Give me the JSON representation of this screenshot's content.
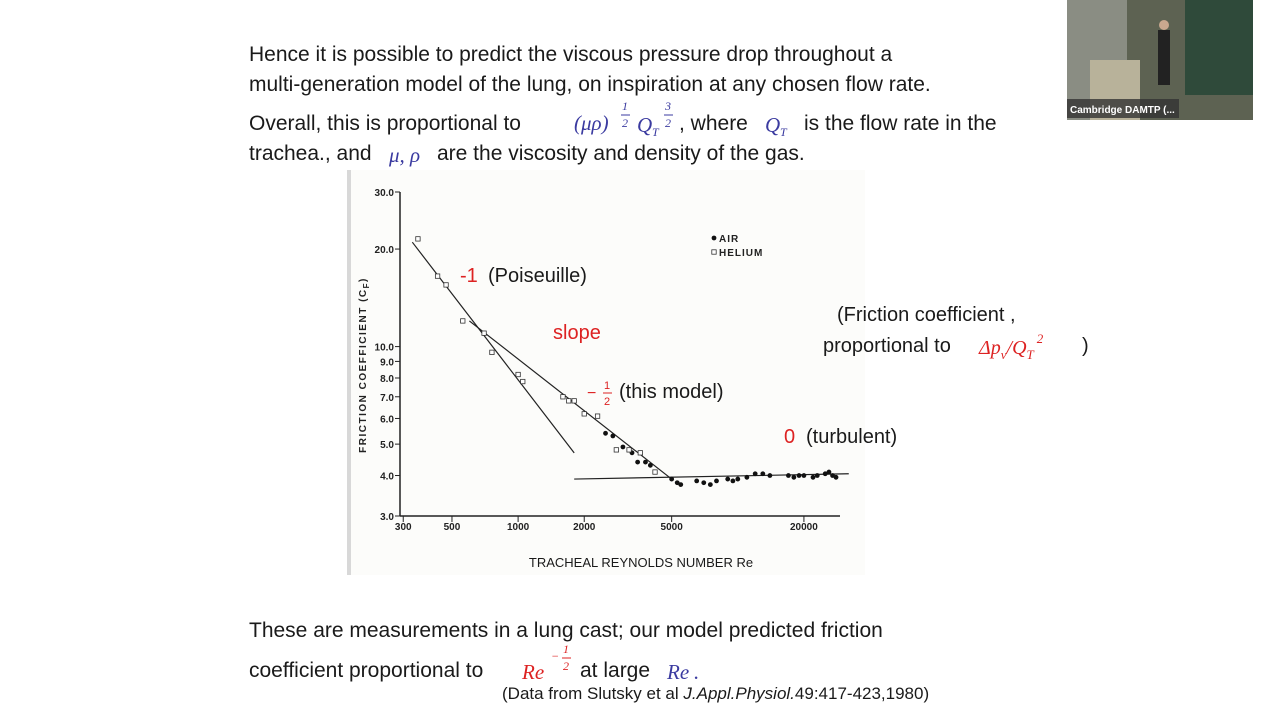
{
  "slide": {
    "intro": [
      "Hence it is possible to predict the viscous pressure drop throughout a",
      "multi-generation model of the lung, on inspiration at any chosen flow rate."
    ],
    "overall": {
      "before": "Overall, this is proportional to",
      "math1": "(μρ)",
      "exp1_num": "1",
      "exp1_den": "2",
      "math2": "Q",
      "sub2": "T",
      "exp2_num": "3",
      "exp2_den": "2",
      "mid": ", where",
      "math3": "Q",
      "sub3": "T",
      "after": "is the flow rate in the"
    },
    "line4": {
      "before": "trachea., and",
      "math": "μ, ρ",
      "after": "are the viscosity and density of the gas."
    },
    "bottom": {
      "line1": "These are measurements in a lung cast; our model predicted friction",
      "before": "coefficient proportional to",
      "math": "Re",
      "exp_sign": "−",
      "exp_num": "1",
      "exp_den": "2",
      "mid": "at large",
      "math2": "Re",
      "end": "."
    },
    "citation": {
      "before": "(Data from Slutsky et al",
      "journal": "J.Appl.Physiol.",
      "after": "49:417-423,1980)"
    }
  },
  "video": {
    "label": "Cambridge DAMTP (..."
  },
  "chart_data": {
    "type": "scatter",
    "x_label": "TRACHEAL REYNOLDS NUMBER Re",
    "y_label": "FRICTION COEFFICIENT (C",
    "y_label_sub": "F",
    "y_label_end": ")",
    "xscale": "log",
    "yscale": "log",
    "xlim": [
      290,
      36000
    ],
    "ylim": [
      3,
      30
    ],
    "xticks": [
      300,
      500,
      1000,
      2000,
      5000,
      20000
    ],
    "yticks": [
      {
        "value": 3,
        "label": "3.0"
      },
      {
        "value": 4,
        "label": "4.0"
      },
      {
        "value": 5,
        "label": "5.0"
      },
      {
        "value": 6,
        "label": "6.0"
      },
      {
        "value": 7,
        "label": "7.0"
      },
      {
        "value": 8,
        "label": "8.0"
      },
      {
        "value": 9,
        "label": "9.0"
      },
      {
        "value": 10,
        "label": "10.0"
      },
      {
        "value": 20,
        "label": "20.0"
      },
      {
        "value": 30,
        "label": "30.0"
      }
    ],
    "series": [
      {
        "name": "AIR",
        "color": "#111111",
        "marker": "dot",
        "x": [
          2500,
          2700,
          3000,
          3300,
          3500,
          3800,
          4000,
          5000,
          5300,
          5500,
          6500,
          7000,
          7500,
          8000,
          9000,
          9500,
          10000,
          11000,
          12000,
          13000,
          14000,
          17000,
          18000,
          19000,
          20000,
          22000,
          23000,
          25000,
          26000,
          27000,
          28000
        ],
        "values": [
          5.4,
          5.3,
          4.9,
          4.7,
          4.4,
          4.4,
          4.3,
          3.9,
          3.8,
          3.75,
          3.85,
          3.8,
          3.75,
          3.85,
          3.9,
          3.85,
          3.9,
          3.95,
          4.05,
          4.05,
          4.0,
          4.0,
          3.95,
          4.0,
          4.0,
          3.95,
          4.0,
          4.05,
          4.1,
          4.0,
          3.95
        ]
      },
      {
        "name": "HELIUM",
        "color": "#333333",
        "marker": "square",
        "x": [
          350,
          430,
          470,
          560,
          700,
          760,
          1000,
          1050,
          1600,
          1700,
          1800,
          2000,
          2300,
          2800,
          3200,
          3600,
          4200
        ],
        "values": [
          21.5,
          16.5,
          15.5,
          12,
          11,
          9.6,
          8.2,
          7.8,
          7.0,
          6.8,
          6.8,
          6.2,
          6.1,
          4.8,
          4.8,
          4.7,
          4.1
        ]
      }
    ],
    "fit_lines": [
      {
        "x": [
          330,
          1800
        ],
        "values": [
          21,
          4.7
        ]
      },
      {
        "x": [
          600,
          5000
        ],
        "values": [
          12,
          3.9
        ]
      },
      {
        "x": [
          1800,
          32000
        ],
        "values": [
          3.9,
          4.05
        ]
      }
    ],
    "annotations": {
      "poiseuille_slope": "-1",
      "poiseuille": "(Poiseuille)",
      "slope": "slope",
      "model_sign": "−",
      "model_num": "1",
      "model_den": "2",
      "model": "(this model)",
      "turbulent_slope": "0",
      "turbulent": "(turbulent)",
      "friction1": "(Friction coefficient ,",
      "friction2": "proportional to",
      "friction_math": "Δp",
      "friction_sub": "v",
      "friction_slash": "/Q",
      "friction_sub2": "T",
      "friction_exp": "2",
      "friction_end": ")"
    }
  }
}
